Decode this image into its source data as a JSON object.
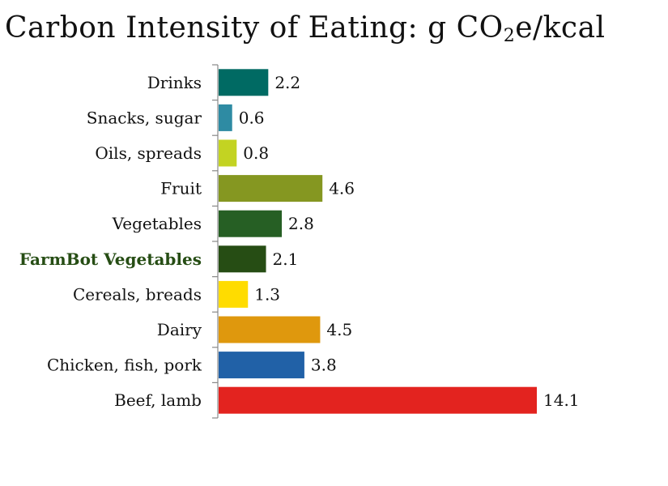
{
  "chart_data": {
    "type": "bar",
    "orientation": "horizontal",
    "title_main": "Carbon Intensity of Eating: g CO",
    "title_sub": "2",
    "title_tail": "e/kcal",
    "categories": [
      "Drinks",
      "Snacks, sugar",
      "Oils, spreads",
      "Fruit",
      "Vegetables",
      "FarmBot Vegetables",
      "Cereals, breads",
      "Dairy",
      "Chicken, fish, pork",
      "Beef, lamb"
    ],
    "values": [
      2.2,
      0.6,
      0.8,
      4.6,
      2.8,
      2.1,
      1.3,
      4.5,
      3.8,
      14.1
    ],
    "value_labels": [
      "2.2",
      "0.6",
      "0.8",
      "4.6",
      "2.8",
      "2.1",
      "1.3",
      "4.5",
      "3.8",
      "14.1"
    ],
    "colors": [
      "#006a63",
      "#2e8ba3",
      "#c3d322",
      "#859721",
      "#265f24",
      "#264d14",
      "#ffdc00",
      "#df980d",
      "#2161a7",
      "#e3231f"
    ],
    "highlighted_category": "FarmBot Vegetables",
    "highlight_color": "#264d14",
    "xlim": [
      0,
      14.1
    ],
    "grid": false,
    "legend": "none"
  }
}
